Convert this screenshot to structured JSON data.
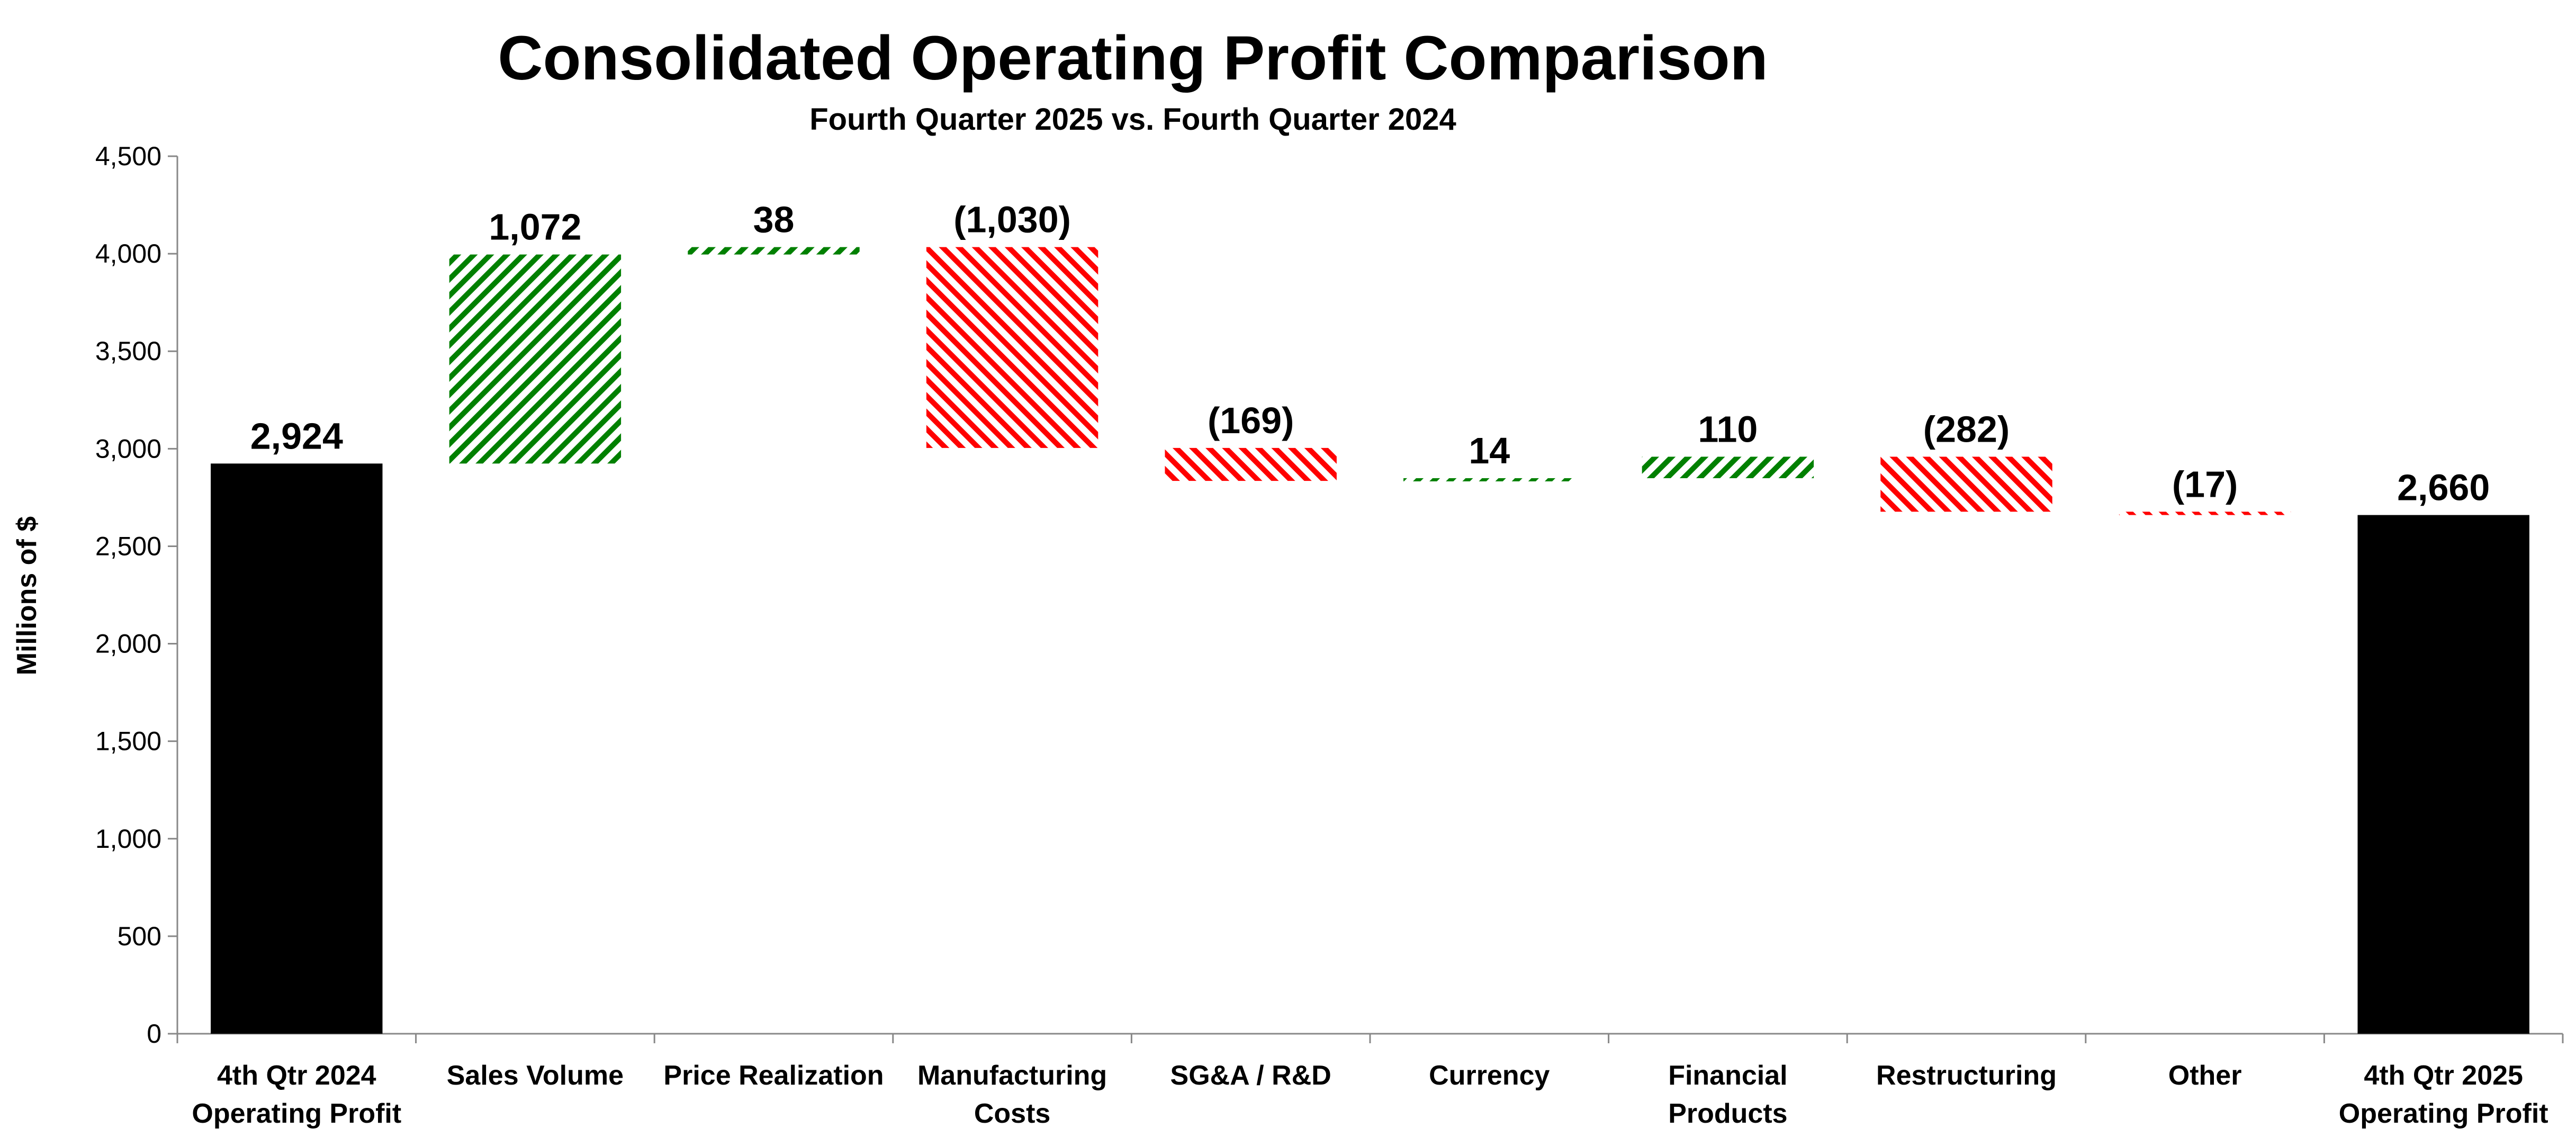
{
  "chart_data": {
    "type": "waterfall",
    "title": "Consolidated Operating Profit Comparison",
    "subtitle": "Fourth Quarter 2025 vs. Fourth Quarter 2024",
    "ylabel": "Millions of $",
    "xlabel": "",
    "ylim": [
      0,
      4500
    ],
    "yticks": [
      0,
      500,
      1000,
      1500,
      2000,
      2500,
      3000,
      3500,
      4000,
      4500
    ],
    "ytick_labels": [
      "0",
      "500",
      "1,000",
      "1,500",
      "2,000",
      "2,500",
      "3,000",
      "3,500",
      "4,000",
      "4,500"
    ],
    "grid": false,
    "categories": [
      [
        "4th Qtr 2024",
        "Operating Profit"
      ],
      [
        "Sales Volume"
      ],
      [
        "Price Realization"
      ],
      [
        "Manufacturing",
        "Costs"
      ],
      [
        "SG&A / R&D"
      ],
      [
        "Currency"
      ],
      [
        "Financial",
        "Products"
      ],
      [
        "Restructuring"
      ],
      [
        "Other"
      ],
      [
        "4th Qtr 2025",
        "Operating Profit"
      ]
    ],
    "values": [
      2924,
      1072,
      38,
      -1030,
      -169,
      14,
      110,
      -282,
      -17,
      2660
    ],
    "kinds": [
      "total",
      "delta",
      "delta",
      "delta",
      "delta",
      "delta",
      "delta",
      "delta",
      "delta",
      "total"
    ],
    "value_labels": [
      "2,924",
      "1,072",
      "38",
      "(1,030)",
      "(169)",
      "14",
      "110",
      "(282)",
      "(17)",
      "2,660"
    ],
    "colors": {
      "total": "#000000",
      "increase": "#008000",
      "decrease": "#ff0000"
    }
  }
}
